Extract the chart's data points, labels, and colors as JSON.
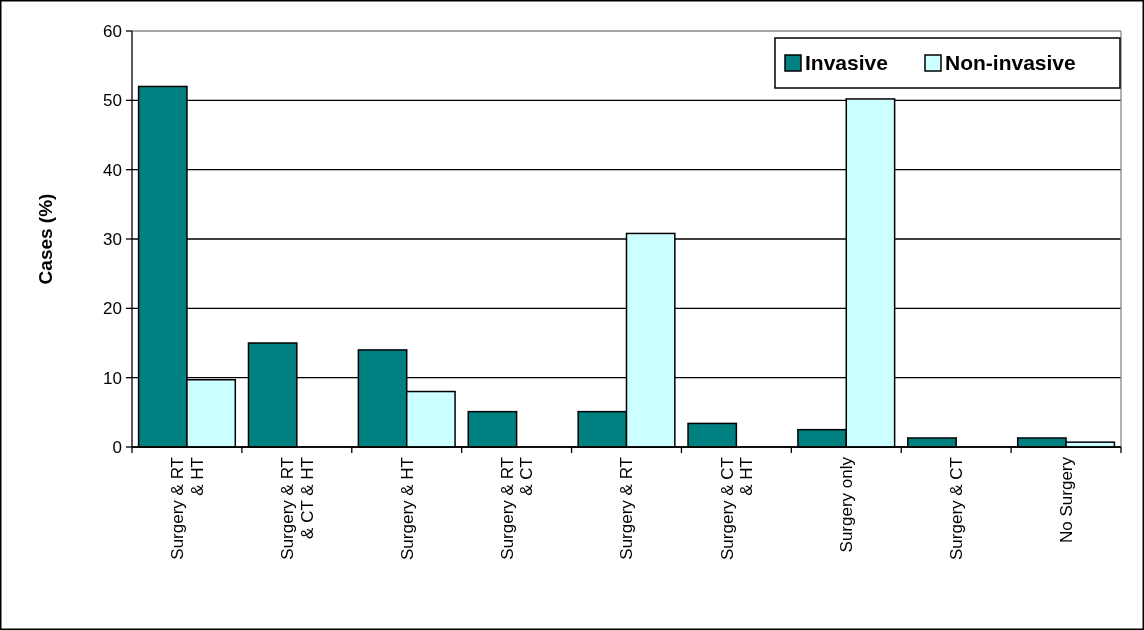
{
  "chart_data": {
    "type": "bar",
    "ylabel": "Cases (%)",
    "categories": [
      "Surgery & RT & HT",
      "Surgery & RT & CT & HT",
      "Surgery & HT",
      "Surgery & RT & CT",
      "Surgery & RT",
      "Surgery & CT & HT",
      "Surgery only",
      "Surgery & CT",
      "No Surgery"
    ],
    "series": [
      {
        "name": "Invasive",
        "color": "#008080",
        "values": [
          52,
          15,
          14,
          5.1,
          5.1,
          3.4,
          2.5,
          1.3,
          1.3
        ]
      },
      {
        "name": "Non-invasive",
        "color": "#ccffff",
        "values": [
          9.7,
          null,
          8,
          null,
          30.8,
          null,
          50.2,
          null,
          0.7
        ]
      }
    ],
    "ylim": [
      0,
      60
    ],
    "yticks": [
      0,
      10,
      20,
      30,
      40,
      50,
      60
    ],
    "grid": "y",
    "legend": "top right"
  }
}
